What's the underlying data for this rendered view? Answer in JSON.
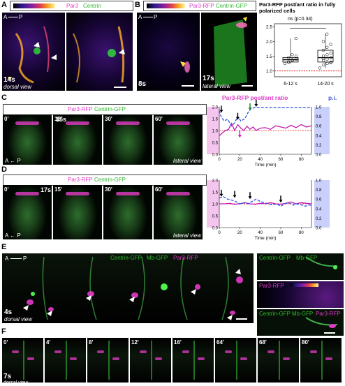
{
  "panel_A": {
    "label": "A",
    "legend": {
      "par3": "Par3",
      "centrin": "Centrin"
    },
    "axis": {
      "a": "A",
      "p": "P"
    },
    "time": "14s",
    "view": "dorsal view"
  },
  "panel_B": {
    "label": "B",
    "legend": {
      "par3": "Par3-RFP",
      "centrin": "Centrin-GFP"
    },
    "axis": {
      "a": "A",
      "p": "P"
    },
    "time_left": "8s",
    "time_right": "17s",
    "view": "lateral view",
    "plot": {
      "title": "Par3-RFP post/ant ratio in fully polarized cells",
      "significance": "ns (p=0.34)",
      "yticks": [
        "1.0",
        "1.5",
        "2.0",
        "2.5"
      ],
      "groups": [
        "6-12 s",
        "14-20 s"
      ]
    }
  },
  "panel_C": {
    "label": "C",
    "legend": {
      "par3": "Par3-RFP",
      "centrin": "Centrin-GFP"
    },
    "somite": "15s",
    "frames": [
      "0'",
      "18'",
      "30'",
      "60'"
    ],
    "view": "lateral view",
    "axis": {
      "a": "A",
      "p": "P"
    },
    "plot": {
      "title": "Par3-RFP post/ant ratio",
      "pi_label": "p.i.",
      "xlabel": "Time (min)",
      "xticks": [
        "0",
        "20",
        "40",
        "60",
        "80"
      ],
      "yticks_left": [
        "0.0",
        "0.5",
        "1.0",
        "1.5",
        "2.0"
      ],
      "yticks_right": [
        "0.0",
        "0.2",
        "0.4",
        "0.6",
        "0.8",
        "1.0"
      ]
    }
  },
  "panel_D": {
    "label": "D",
    "legend": {
      "par3": "Par3-RFP",
      "centrin": "Centrin-GFP"
    },
    "somite": "17s",
    "frames": [
      "0'",
      "15'",
      "30'",
      "60'"
    ],
    "view": "lateral view",
    "axis": {
      "a": "A",
      "p": "P"
    },
    "plot": {
      "xlabel": "Time (min)",
      "xticks": [
        "0",
        "20",
        "40",
        "60",
        "80"
      ],
      "yticks_left": [
        "0.0",
        "0.5",
        "1.0",
        "1.5",
        "2.0"
      ],
      "yticks_right": [
        "0.0",
        "0.2",
        "0.4",
        "0.6",
        "0.8",
        "1.0"
      ]
    }
  },
  "panel_E": {
    "label": "E",
    "legend": {
      "centrin": "Centrin-GFP",
      "mb": "Mb-GFP",
      "par3": "Par3-RFP"
    },
    "axis": {
      "a": "A",
      "p": "P"
    },
    "time": "4s",
    "view": "dorsal view",
    "inset_top": {
      "centrin": "Centrin-GFP",
      "mb": "Mb-GFP"
    },
    "inset_mid": "Par3-RFP",
    "inset_bot": {
      "centrin": "Centrin-GFP",
      "mb": "Mb-GFP",
      "par3": "Par3-RFP"
    }
  },
  "panel_F": {
    "label": "F",
    "frames": [
      "0'",
      "4'",
      "8'",
      "12'",
      "16'",
      "64'",
      "68'",
      "80'"
    ],
    "time": "7s",
    "view": "dorsal view"
  },
  "chart_data": [
    {
      "type": "scatter",
      "title": "Par3-RFP post/ant ratio in fully polarized cells",
      "categories": [
        "6-12 s",
        "14-20 s"
      ],
      "ylim": [
        0.8,
        2.6
      ],
      "series": [
        {
          "name": "6-12 s",
          "values": [
            1.25,
            1.3,
            1.35,
            1.4,
            1.45,
            1.38,
            1.5,
            1.3,
            1.55,
            2.1
          ]
        },
        {
          "name": "14-20 s",
          "values": [
            1.1,
            1.2,
            1.25,
            1.3,
            1.35,
            1.4,
            1.45,
            1.5,
            1.55,
            1.6,
            1.7,
            1.8,
            1.9,
            2.0,
            2.25,
            1.28,
            1.42
          ]
        }
      ],
      "reference_line": 1.0
    },
    {
      "type": "line",
      "title": "Par3-RFP post/ant ratio",
      "xlabel": "Time (min)",
      "xlim": [
        0,
        90
      ],
      "ylim": [
        0,
        2.0
      ],
      "y2lim": [
        0,
        1.0
      ],
      "series": [
        {
          "x": [
            0,
            3,
            6,
            9,
            12,
            15,
            18,
            21,
            24,
            27,
            30,
            33,
            36,
            40,
            45,
            50,
            55,
            60,
            65,
            70,
            75,
            80,
            85,
            90
          ],
          "values": [
            0.78,
            0.9,
            1.0,
            1.05,
            1.3,
            1.0,
            1.25,
            1.1,
            1.0,
            1.18,
            1.05,
            1.15,
            1.0,
            1.1,
            1.12,
            1.05,
            1.2,
            1.15,
            1.1,
            1.22,
            1.12,
            1.25,
            1.15,
            1.2
          ]
        },
        {
          "x": [
            0,
            2,
            5,
            8,
            12,
            15,
            18,
            21,
            25,
            28,
            31,
            34,
            40,
            50,
            60,
            70,
            80,
            90
          ],
          "values": [
            0.92,
            0.78,
            0.7,
            0.74,
            0.6,
            0.66,
            0.8,
            0.7,
            0.75,
            0.88,
            0.96,
            0.98,
            0.98,
            0.98,
            0.98,
            0.98,
            0.98,
            0.98
          ]
        }
      ]
    },
    {
      "type": "line",
      "xlabel": "Time (min)",
      "xlim": [
        0,
        90
      ],
      "ylim": [
        0,
        2.0
      ],
      "y2lim": [
        0,
        1.0
      ],
      "series": [
        {
          "x": [
            0,
            5,
            10,
            15,
            20,
            25,
            30,
            35,
            40,
            45,
            50,
            55,
            60,
            65,
            70,
            75,
            80,
            85,
            90
          ],
          "values": [
            1.0,
            1.0,
            1.02,
            0.98,
            1.0,
            1.05,
            1.0,
            0.98,
            1.02,
            1.0,
            1.05,
            1.0,
            0.98,
            1.02,
            1.08,
            1.0,
            1.05,
            1.02,
            1.0
          ]
        },
        {
          "x": [
            0,
            4,
            8,
            12,
            16,
            20,
            24,
            28,
            32,
            36,
            40,
            44,
            48,
            52,
            56,
            60,
            64,
            68,
            72,
            76,
            80,
            84,
            88,
            90
          ],
          "values": [
            0.62,
            0.65,
            0.6,
            0.58,
            0.55,
            0.5,
            0.52,
            0.5,
            0.55,
            0.6,
            0.55,
            0.52,
            0.5,
            0.48,
            0.5,
            0.45,
            0.5,
            0.52,
            0.47,
            0.5,
            0.48,
            0.45,
            0.48,
            0.46
          ]
        }
      ]
    }
  ]
}
